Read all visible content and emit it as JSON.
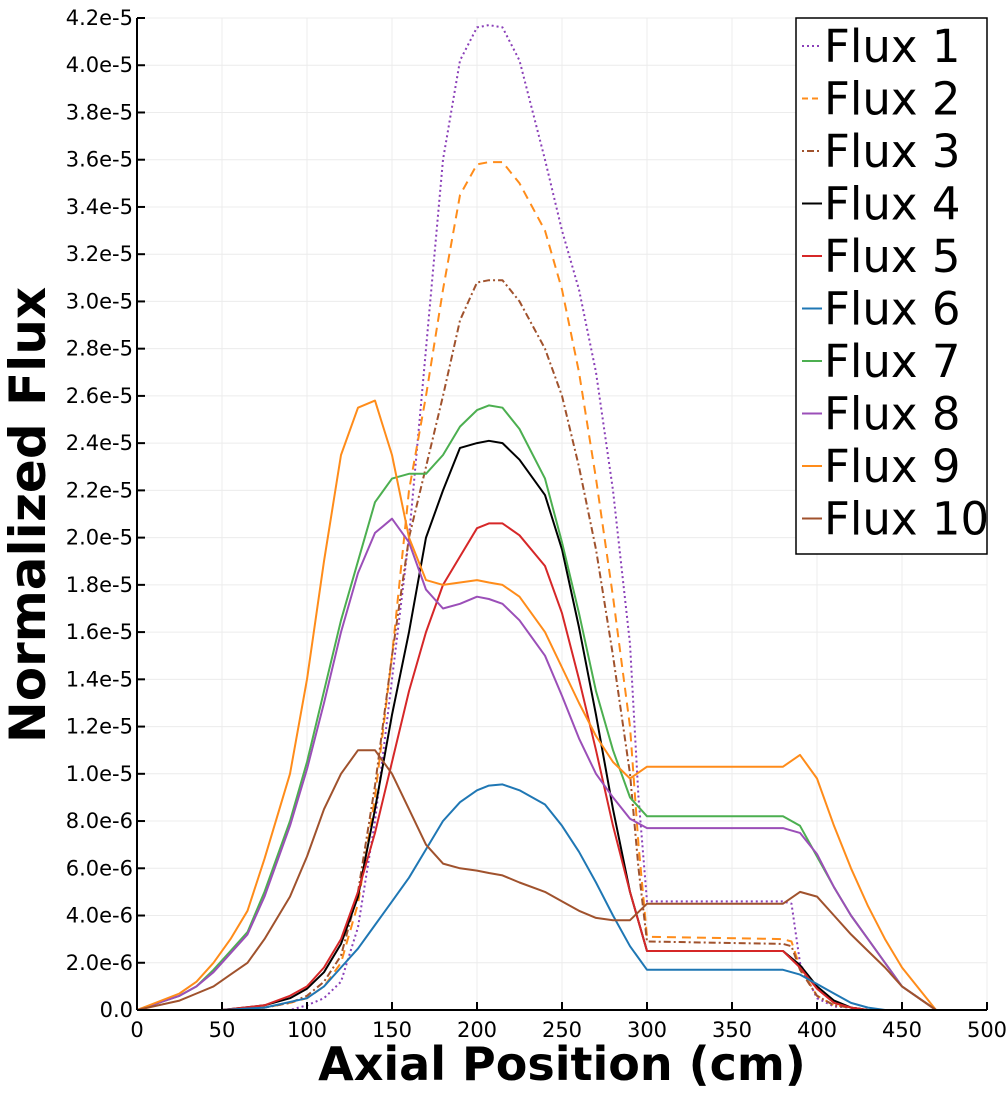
{
  "chart_data": {
    "type": "line",
    "title": "",
    "xlabel": "Axial Position (cm)",
    "ylabel": "Normalized Flux",
    "xlim": [
      0,
      500
    ],
    "ylim": [
      0,
      4.2e-05
    ],
    "xticks": [
      0,
      50,
      100,
      150,
      200,
      250,
      300,
      350,
      400,
      450,
      500
    ],
    "xtick_labels": [
      "0",
      "50",
      "100",
      "150",
      "200",
      "250",
      "300",
      "350",
      "400",
      "450",
      "500"
    ],
    "yticks": [
      0,
      2e-06,
      4e-06,
      6e-06,
      8e-06,
      1e-05,
      1.2e-05,
      1.4e-05,
      1.6e-05,
      1.8e-05,
      2e-05,
      2.2e-05,
      2.4e-05,
      2.6e-05,
      2.8e-05,
      3e-05,
      3.2e-05,
      3.4e-05,
      3.6e-05,
      3.8e-05,
      4e-05,
      4.2e-05
    ],
    "ytick_labels": [
      "0.0",
      "2.0e-6",
      "4.0e-6",
      "6.0e-6",
      "8.0e-6",
      "1.0e-5",
      "1.2e-5",
      "1.4e-5",
      "1.6e-5",
      "1.8e-5",
      "2.0e-5",
      "2.2e-5",
      "2.4e-5",
      "2.6e-5",
      "2.8e-5",
      "3.0e-5",
      "3.2e-5",
      "3.4e-5",
      "3.6e-5",
      "3.8e-5",
      "4.0e-5",
      "4.2e-5"
    ],
    "grid": true,
    "legend_position": "top-right",
    "series": [
      {
        "name": "Flux 1",
        "color": "#8a3fb8",
        "dash": "dotted",
        "x": [
          0,
          25,
          50,
          75,
          90,
          100,
          110,
          120,
          130,
          140,
          150,
          160,
          170,
          180,
          190,
          200,
          207,
          215,
          225,
          240,
          250,
          260,
          270,
          280,
          290,
          295,
          300,
          380,
          385,
          390,
          400,
          410,
          420,
          430,
          440,
          450,
          470
        ],
        "y": [
          0,
          0,
          0,
          0,
          0,
          2e-07,
          5e-07,
          1.2e-06,
          3.5e-06,
          8e-06,
          1.4e-05,
          2e-05,
          2.8e-05,
          3.6e-05,
          4.02e-05,
          4.16e-05,
          4.17e-05,
          4.16e-05,
          4.02e-05,
          3.6e-05,
          3.3e-05,
          3.05e-05,
          2.7e-05,
          2.2e-05,
          1.55e-05,
          9e-06,
          4.6e-06,
          4.6e-06,
          4.5e-06,
          2e-06,
          5e-07,
          1.5e-07,
          1e-07,
          0,
          0,
          0,
          0
        ]
      },
      {
        "name": "Flux 2",
        "color": "#ff8c1a",
        "dash": "dashed",
        "x": [
          0,
          25,
          50,
          75,
          90,
          100,
          110,
          120,
          130,
          140,
          150,
          160,
          170,
          180,
          190,
          200,
          207,
          215,
          225,
          240,
          250,
          260,
          270,
          280,
          290,
          295,
          300,
          380,
          385,
          390,
          400,
          410,
          420,
          430,
          440,
          450,
          470
        ],
        "y": [
          0,
          0,
          0,
          1e-07,
          3e-07,
          5e-07,
          1e-06,
          2e-06,
          4.5e-06,
          9e-06,
          1.5e-05,
          2.2e-05,
          2.6e-05,
          3.05e-05,
          3.45e-05,
          3.58e-05,
          3.59e-05,
          3.59e-05,
          3.5e-05,
          3.3e-05,
          3.05e-05,
          2.7e-05,
          2.25e-05,
          1.75e-05,
          1.2e-05,
          7e-06,
          3.1e-06,
          3e-06,
          2.9e-06,
          1.8e-06,
          6e-07,
          2e-07,
          1e-07,
          0,
          0,
          0,
          0
        ]
      },
      {
        "name": "Flux 3",
        "color": "#a0522d",
        "dash": "dashdot",
        "x": [
          0,
          25,
          50,
          75,
          90,
          100,
          110,
          120,
          130,
          140,
          150,
          160,
          170,
          180,
          190,
          200,
          207,
          215,
          225,
          240,
          250,
          260,
          270,
          280,
          290,
          295,
          300,
          380,
          385,
          390,
          400,
          410,
          420,
          430,
          440,
          450,
          470
        ],
        "y": [
          0,
          0,
          0,
          1e-07,
          3e-07,
          6e-07,
          1.2e-06,
          2.3e-06,
          5e-06,
          9.5e-06,
          1.5e-05,
          2e-05,
          2.3e-05,
          2.6e-05,
          2.92e-05,
          3.08e-05,
          3.09e-05,
          3.09e-05,
          3e-05,
          2.8e-05,
          2.6e-05,
          2.3e-05,
          1.95e-05,
          1.5e-05,
          1e-05,
          6e-06,
          2.9e-06,
          2.8e-06,
          2.7e-06,
          1.7e-06,
          6e-07,
          2e-07,
          1e-07,
          0,
          0,
          0,
          0
        ]
      },
      {
        "name": "Flux 4",
        "color": "#000000",
        "dash": "solid",
        "x": [
          0,
          25,
          50,
          75,
          90,
          100,
          110,
          120,
          130,
          140,
          150,
          160,
          170,
          180,
          190,
          200,
          207,
          215,
          225,
          240,
          250,
          260,
          270,
          280,
          290,
          300,
          380,
          390,
          400,
          410,
          420,
          430,
          440,
          450,
          470
        ],
        "y": [
          0,
          0,
          0,
          2e-07,
          5e-07,
          9e-07,
          1.6e-06,
          2.8e-06,
          4.8e-06,
          8.5e-06,
          1.25e-05,
          1.6e-05,
          2e-05,
          2.2e-05,
          2.38e-05,
          2.4e-05,
          2.41e-05,
          2.4e-05,
          2.33e-05,
          2.18e-05,
          1.95e-05,
          1.62e-05,
          1.25e-05,
          8.5e-06,
          5e-06,
          2.5e-06,
          2.5e-06,
          1.9e-06,
          1e-06,
          4e-07,
          1e-07,
          0,
          0,
          0,
          0
        ]
      },
      {
        "name": "Flux 5",
        "color": "#d62728",
        "dash": "solid",
        "x": [
          0,
          25,
          50,
          75,
          90,
          100,
          110,
          120,
          130,
          140,
          150,
          160,
          170,
          180,
          190,
          200,
          207,
          215,
          225,
          240,
          250,
          260,
          270,
          280,
          290,
          300,
          380,
          390,
          400,
          410,
          420,
          430,
          440,
          450,
          470
        ],
        "y": [
          0,
          0,
          0,
          2e-07,
          6e-07,
          1e-06,
          1.8e-06,
          3e-06,
          5e-06,
          7.5e-06,
          1.05e-05,
          1.35e-05,
          1.6e-05,
          1.8e-05,
          1.92e-05,
          2.04e-05,
          2.06e-05,
          2.06e-05,
          2.01e-05,
          1.88e-05,
          1.68e-05,
          1.4e-05,
          1.1e-05,
          7.8e-06,
          5e-06,
          2.5e-06,
          2.5e-06,
          1.8e-06,
          9e-07,
          3e-07,
          1e-07,
          0,
          0,
          0,
          0
        ]
      },
      {
        "name": "Flux 6",
        "color": "#1f77b4",
        "dash": "solid",
        "x": [
          0,
          50,
          75,
          100,
          110,
          120,
          130,
          140,
          150,
          160,
          170,
          180,
          190,
          200,
          207,
          215,
          225,
          240,
          250,
          260,
          270,
          280,
          290,
          300,
          380,
          390,
          400,
          410,
          420,
          430,
          440,
          450,
          470
        ],
        "y": [
          0,
          0,
          1e-07,
          5e-07,
          1e-06,
          1.8e-06,
          2.6e-06,
          3.6e-06,
          4.6e-06,
          5.6e-06,
          6.8e-06,
          8e-06,
          8.8e-06,
          9.3e-06,
          9.5e-06,
          9.55e-06,
          9.3e-06,
          8.7e-06,
          7.8e-06,
          6.7e-06,
          5.4e-06,
          4e-06,
          2.7e-06,
          1.7e-06,
          1.7e-06,
          1.5e-06,
          1.1e-06,
          7e-07,
          3e-07,
          1e-07,
          0,
          0,
          0
        ]
      },
      {
        "name": "Flux 7",
        "color": "#4caf50",
        "dash": "solid",
        "x": [
          0,
          25,
          35,
          45,
          55,
          65,
          75,
          90,
          100,
          110,
          120,
          130,
          140,
          150,
          160,
          170,
          180,
          190,
          200,
          207,
          215,
          225,
          240,
          250,
          260,
          270,
          280,
          290,
          300,
          380,
          390,
          400,
          410,
          420,
          430,
          440,
          450,
          470
        ],
        "y": [
          0,
          6e-07,
          1e-06,
          1.7e-06,
          2.5e-06,
          3.3e-06,
          5e-06,
          8e-06,
          1.05e-05,
          1.35e-05,
          1.65e-05,
          1.9e-05,
          2.15e-05,
          2.25e-05,
          2.27e-05,
          2.27e-05,
          2.35e-05,
          2.47e-05,
          2.54e-05,
          2.56e-05,
          2.55e-05,
          2.46e-05,
          2.25e-05,
          1.98e-05,
          1.68e-05,
          1.35e-05,
          1.1e-05,
          9e-06,
          8.2e-06,
          8.2e-06,
          7.8e-06,
          6.5e-06,
          5.2e-06,
          4e-06,
          3e-06,
          2e-06,
          1e-06,
          0
        ]
      },
      {
        "name": "Flux 8",
        "color": "#9b4fb8",
        "dash": "solid",
        "x": [
          0,
          25,
          35,
          45,
          55,
          65,
          75,
          90,
          100,
          110,
          120,
          130,
          140,
          150,
          160,
          170,
          180,
          190,
          200,
          207,
          215,
          225,
          240,
          250,
          260,
          270,
          280,
          290,
          300,
          380,
          390,
          400,
          410,
          420,
          430,
          440,
          450,
          470
        ],
        "y": [
          0,
          6e-07,
          1e-06,
          1.6e-06,
          2.4e-06,
          3.2e-06,
          4.8e-06,
          7.8e-06,
          1.02e-05,
          1.3e-05,
          1.6e-05,
          1.85e-05,
          2.02e-05,
          2.08e-05,
          1.98e-05,
          1.78e-05,
          1.7e-05,
          1.72e-05,
          1.75e-05,
          1.74e-05,
          1.72e-05,
          1.65e-05,
          1.5e-05,
          1.33e-05,
          1.15e-05,
          1e-05,
          9e-06,
          8.1e-06,
          7.7e-06,
          7.7e-06,
          7.5e-06,
          6.6e-06,
          5.2e-06,
          4e-06,
          3e-06,
          2e-06,
          1e-06,
          0
        ]
      },
      {
        "name": "Flux 9",
        "color": "#ff8c1a",
        "dash": "solid",
        "x": [
          0,
          25,
          35,
          45,
          55,
          65,
          75,
          90,
          100,
          110,
          120,
          130,
          140,
          150,
          160,
          170,
          180,
          190,
          200,
          207,
          215,
          225,
          240,
          250,
          260,
          270,
          280,
          290,
          300,
          380,
          390,
          400,
          410,
          420,
          430,
          440,
          450,
          470
        ],
        "y": [
          0,
          7e-07,
          1.2e-06,
          2e-06,
          3e-06,
          4.2e-06,
          6.4e-06,
          1e-05,
          1.4e-05,
          1.9e-05,
          2.35e-05,
          2.55e-05,
          2.58e-05,
          2.35e-05,
          2e-05,
          1.82e-05,
          1.8e-05,
          1.81e-05,
          1.82e-05,
          1.81e-05,
          1.8e-05,
          1.75e-05,
          1.6e-05,
          1.45e-05,
          1.3e-05,
          1.16e-05,
          1.05e-05,
          9.8e-06,
          1.03e-05,
          1.03e-05,
          1.08e-05,
          9.8e-06,
          7.8e-06,
          6e-06,
          4.4e-06,
          3e-06,
          1.8e-06,
          0
        ]
      },
      {
        "name": "Flux 10",
        "color": "#a0522d",
        "dash": "solid",
        "x": [
          0,
          25,
          35,
          45,
          55,
          65,
          75,
          90,
          100,
          110,
          120,
          130,
          140,
          150,
          160,
          170,
          180,
          190,
          200,
          207,
          215,
          225,
          240,
          250,
          260,
          270,
          280,
          290,
          300,
          380,
          390,
          400,
          410,
          420,
          430,
          440,
          450,
          470
        ],
        "y": [
          0,
          4e-07,
          7e-07,
          1e-06,
          1.5e-06,
          2e-06,
          3e-06,
          4.8e-06,
          6.5e-06,
          8.5e-06,
          1e-05,
          1.1e-05,
          1.1e-05,
          1e-05,
          8.5e-06,
          7e-06,
          6.2e-06,
          6e-06,
          5.9e-06,
          5.8e-06,
          5.7e-06,
          5.4e-06,
          5e-06,
          4.6e-06,
          4.2e-06,
          3.9e-06,
          3.8e-06,
          3.8e-06,
          4.5e-06,
          4.5e-06,
          5e-06,
          4.8e-06,
          4e-06,
          3.2e-06,
          2.5e-06,
          1.8e-06,
          1e-06,
          0
        ]
      }
    ]
  }
}
